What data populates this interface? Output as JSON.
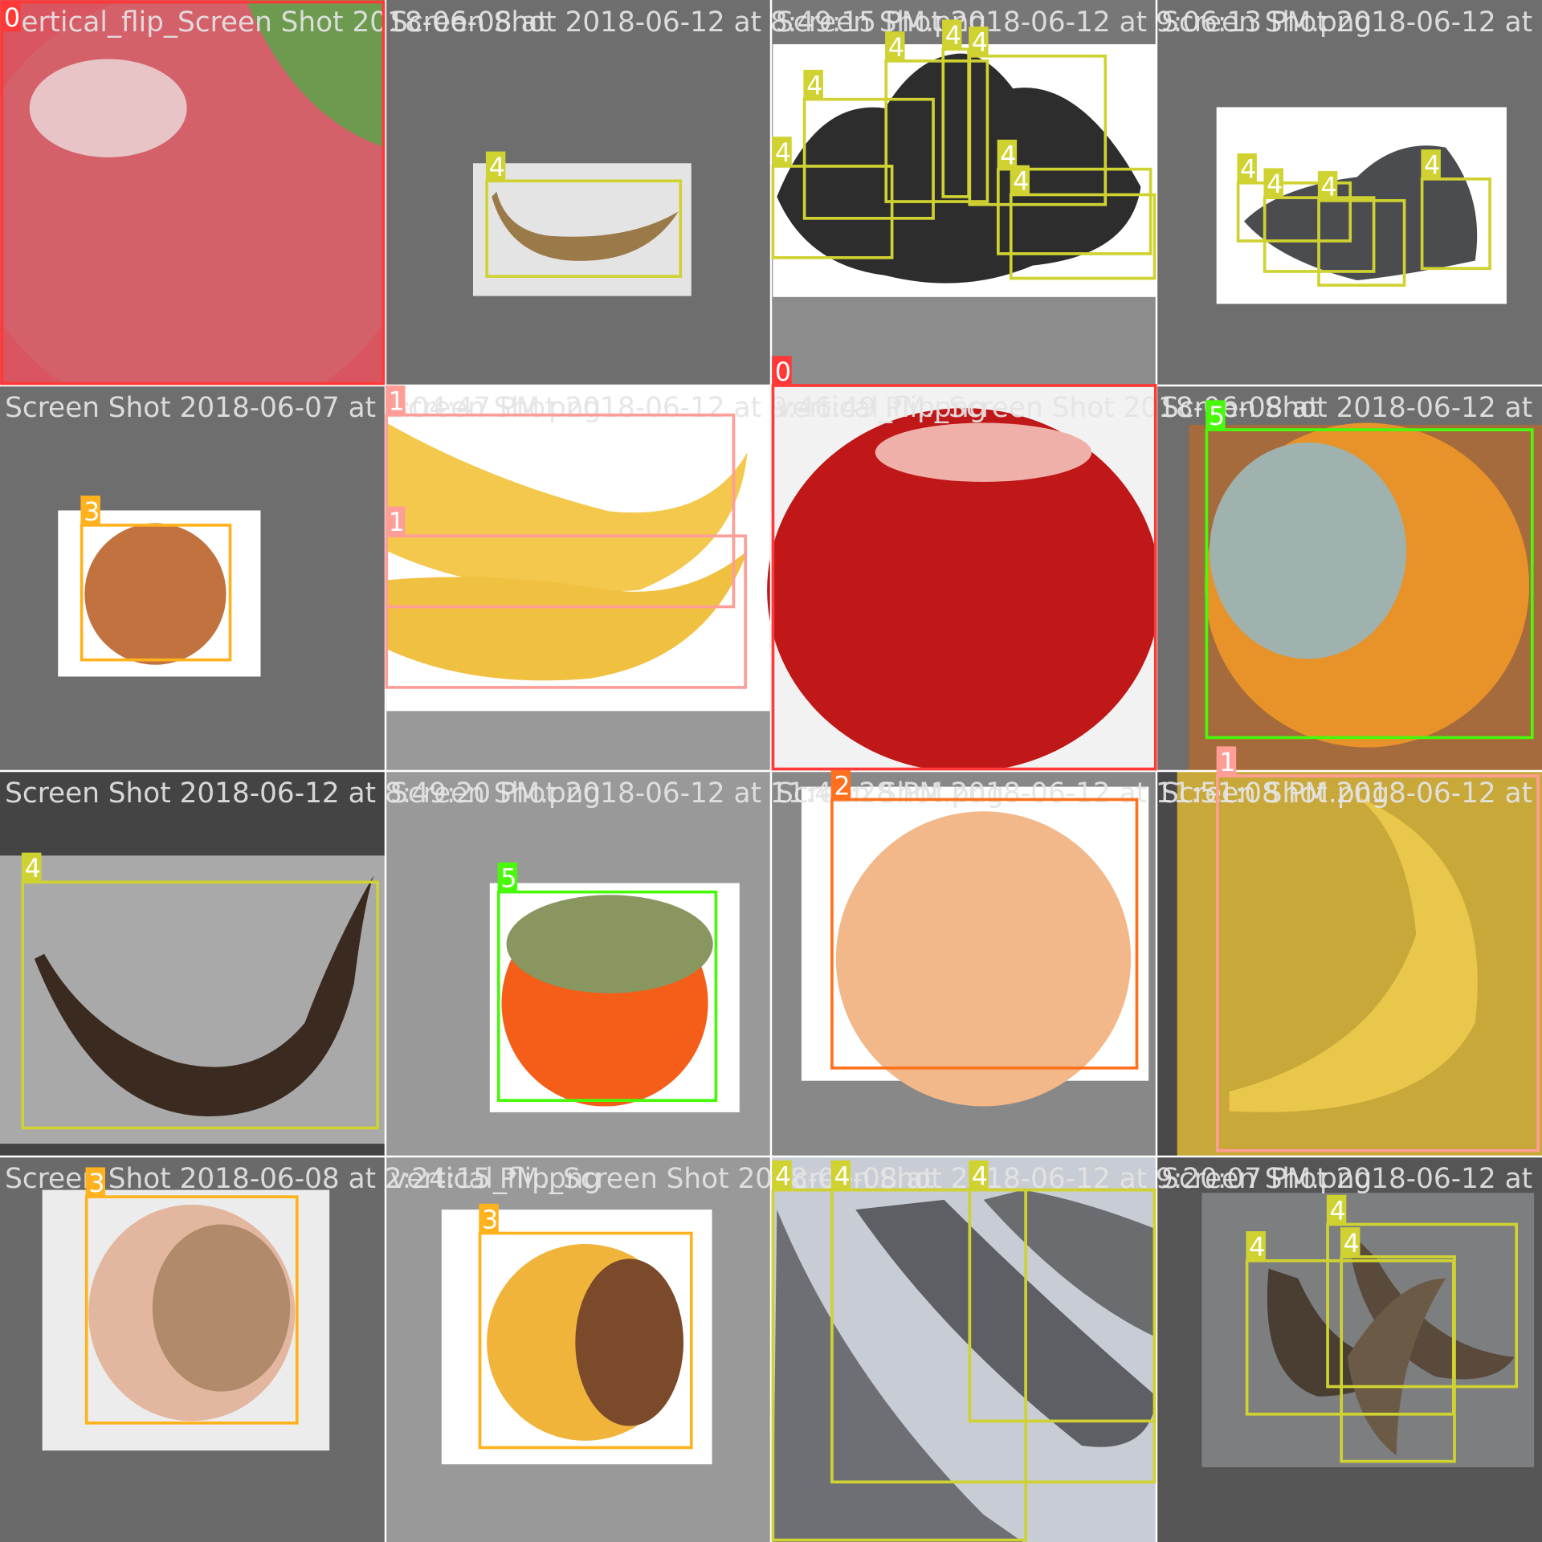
{
  "tiles": [
    {
      "title": "vertical_flip_Screen Shot 2018-06-08 at",
      "boxes": [
        "0"
      ]
    },
    {
      "title": "Screen Shot 2018-06-12 at 8:49:15 PM.png",
      "boxes": [
        "4"
      ]
    },
    {
      "title": "Screen Shot 2018-06-12 at 9:06:13 PM.png",
      "boxes": [
        "4",
        "4",
        "4",
        "4",
        "4",
        "4",
        "4"
      ]
    },
    {
      "title": "Screen Shot 2018-06-12 at 9",
      "boxes": [
        "4",
        "4",
        "4",
        "4"
      ]
    },
    {
      "title": "Screen Shot 2018-06-07 at 3:04:47 PM.png",
      "boxes": [
        "3"
      ]
    },
    {
      "title": "Screen Shot 2018-06-12 at 9:46:49 PM.png",
      "boxes": [
        "1",
        "1"
      ]
    },
    {
      "title": "vertical_flip_Screen Shot 2018-06-08 at",
      "boxes": [
        "0"
      ]
    },
    {
      "title": "Screen Shot 2018-06-12 at 1",
      "boxes": [
        "5"
      ]
    },
    {
      "title": "Screen Shot 2018-06-12 at 8:49:20 PM.png",
      "boxes": [
        "4"
      ]
    },
    {
      "title": "Screen Shot 2018-06-12 at 11:42:28 PM.png",
      "boxes": [
        "5"
      ]
    },
    {
      "title": "Screen Shot 2018-06-12 at 11:51:08 PM.png",
      "boxes": [
        "2"
      ]
    },
    {
      "title": "Screen Shot 2018-06-12 at 9",
      "boxes": [
        "1"
      ]
    },
    {
      "title": "Screen Shot 2018-06-08 at 2:24:15 PM.png",
      "boxes": [
        "3"
      ]
    },
    {
      "title": "vertical_flip_Screen Shot 2018-06-08 at",
      "boxes": [
        "3"
      ]
    },
    {
      "title": "Screen Shot 2018-06-12 at 9:20:07 PM.png",
      "boxes": [
        "4",
        "4",
        "4"
      ]
    },
    {
      "title": "Screen Shot 2018-06-12 at 9",
      "boxes": [
        "4",
        "4",
        "4"
      ]
    }
  ]
}
